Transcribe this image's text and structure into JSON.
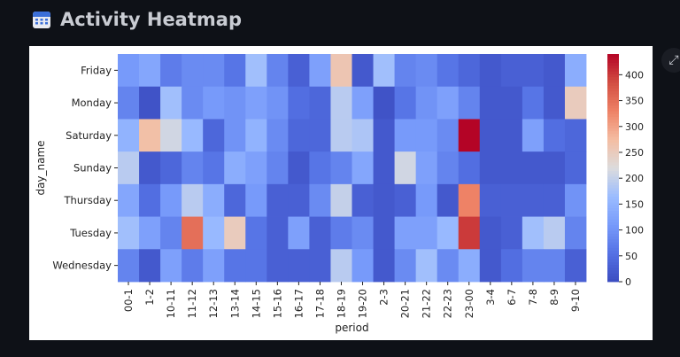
{
  "header": {
    "title": "Activity Heatmap",
    "icon": "calendar-icon"
  },
  "fullscreen_icon": "expand-icon",
  "chart_data": {
    "type": "heatmap",
    "xlabel": "period",
    "ylabel": "day_name",
    "x": [
      "00-1",
      "1-2",
      "10-11",
      "11-12",
      "12-13",
      "13-14",
      "14-15",
      "15-16",
      "16-17",
      "17-18",
      "18-19",
      "19-20",
      "2-3",
      "20-21",
      "21-22",
      "22-23",
      "23-00",
      "3-4",
      "6-7",
      "7-8",
      "8-9",
      "9-10"
    ],
    "y": [
      "Friday",
      "Monday",
      "Saturday",
      "Sunday",
      "Thursday",
      "Tuesday",
      "Wednesday"
    ],
    "values": [
      [
        110,
        130,
        70,
        90,
        90,
        60,
        170,
        80,
        30,
        120,
        260,
        20,
        170,
        80,
        90,
        60,
        40,
        20,
        30,
        30,
        20,
        140
      ],
      [
        80,
        10,
        170,
        90,
        110,
        100,
        120,
        100,
        50,
        40,
        190,
        120,
        10,
        60,
        100,
        120,
        80,
        20,
        20,
        60,
        20,
        250
      ],
      [
        150,
        270,
        210,
        160,
        40,
        100,
        150,
        90,
        40,
        40,
        190,
        180,
        20,
        110,
        110,
        90,
        440,
        20,
        20,
        120,
        50,
        40
      ],
      [
        190,
        20,
        40,
        80,
        60,
        140,
        120,
        80,
        20,
        60,
        80,
        130,
        20,
        210,
        120,
        80,
        50,
        20,
        20,
        20,
        20,
        40
      ],
      [
        130,
        50,
        110,
        190,
        140,
        40,
        110,
        30,
        30,
        90,
        200,
        30,
        20,
        30,
        110,
        20,
        330,
        30,
        30,
        30,
        30,
        100
      ],
      [
        170,
        120,
        80,
        350,
        160,
        250,
        60,
        30,
        120,
        30,
        70,
        90,
        20,
        120,
        120,
        160,
        400,
        20,
        30,
        170,
        190,
        80
      ],
      [
        80,
        20,
        120,
        70,
        120,
        60,
        60,
        30,
        30,
        30,
        190,
        110,
        20,
        90,
        170,
        90,
        140,
        20,
        50,
        80,
        80,
        30
      ]
    ],
    "colorbar": {
      "colormap": "coolwarm",
      "vmin": 0,
      "vmax": 440,
      "ticks": [
        0,
        50,
        100,
        150,
        200,
        250,
        300,
        350,
        400
      ]
    }
  }
}
